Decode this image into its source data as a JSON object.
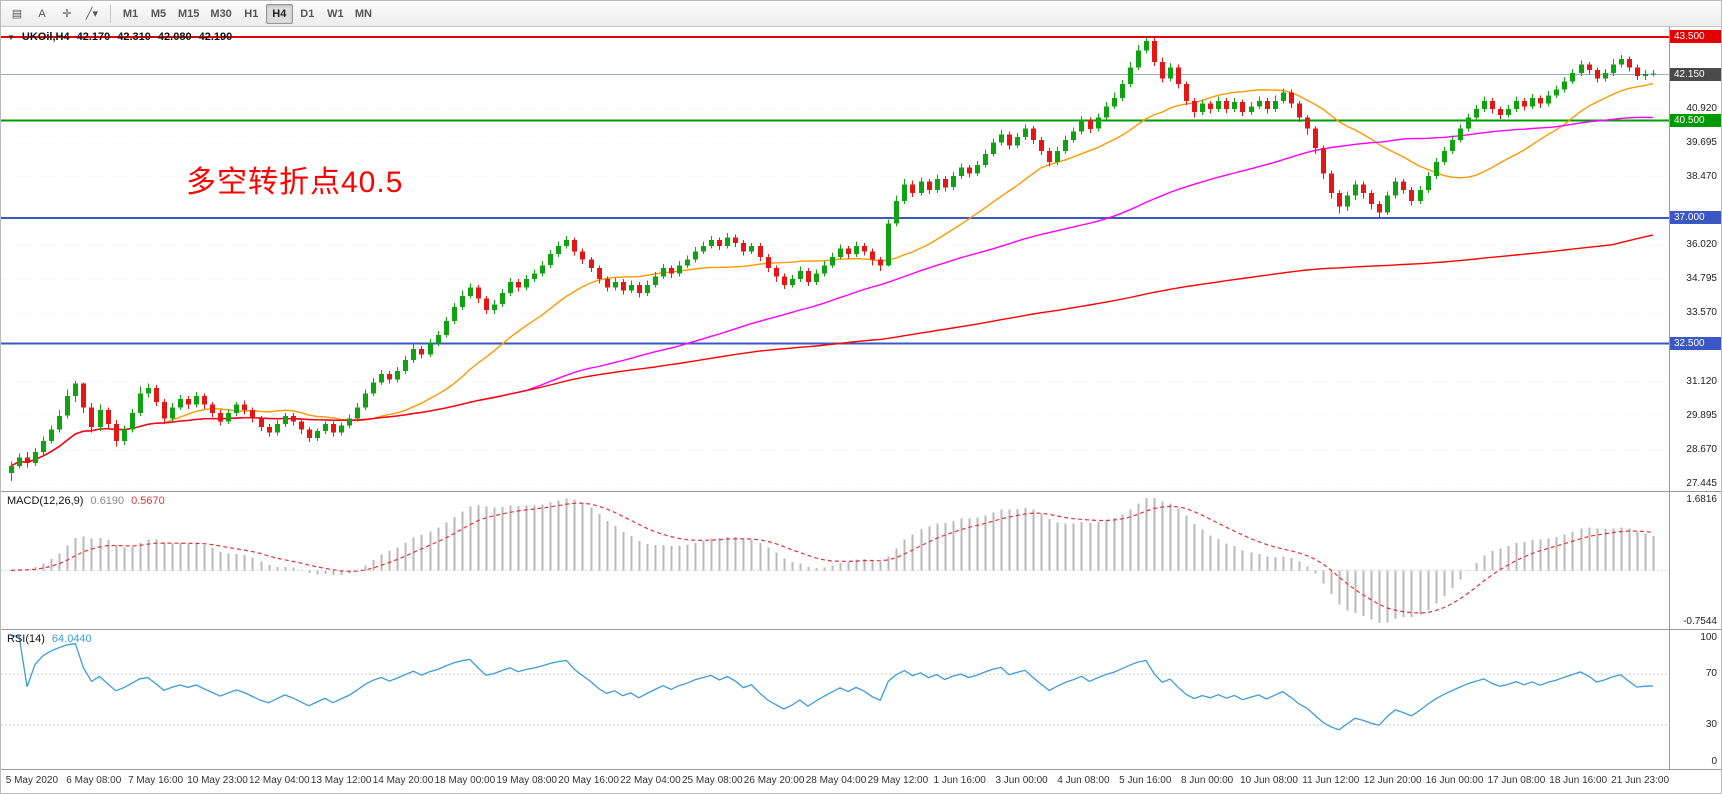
{
  "app": {
    "toolbar": {
      "left_buttons": [
        {
          "name": "chart-window-button",
          "glyph": "▤"
        },
        {
          "name": "text-label-button",
          "glyph": "A"
        },
        {
          "name": "crosshair-button",
          "glyph": "✛"
        },
        {
          "name": "line-studies-dropdown",
          "glyph": "╱",
          "chevron": "▾"
        }
      ],
      "timeframes": [
        "M1",
        "M5",
        "M15",
        "M30",
        "H1",
        "H4",
        "D1",
        "W1",
        "MN"
      ],
      "active_timeframe": "H4"
    }
  },
  "chart": {
    "title": {
      "expander": "▼",
      "symbol_period": "UKOil,H4",
      "open": "42.170",
      "high": "42.310",
      "low": "42.080",
      "close": "42.190"
    },
    "annotation": {
      "text": "多空转折点40.5",
      "color": "#ff0000"
    }
  },
  "chart_data": {
    "type": "candlestick",
    "symbol": "UKOil",
    "timeframe": "H4",
    "price_axis": {
      "min": 27.2,
      "max": 43.85,
      "labels": [
        {
          "v": 40.92,
          "t": "40.920"
        },
        {
          "v": 39.695,
          "t": "39.695"
        },
        {
          "v": 38.47,
          "t": "38.470"
        },
        {
          "v": 36.02,
          "t": "36.020"
        },
        {
          "v": 34.795,
          "t": "34.795"
        },
        {
          "v": 33.57,
          "t": "33.570"
        },
        {
          "v": 31.12,
          "t": "31.120"
        },
        {
          "v": 29.895,
          "t": "29.895"
        },
        {
          "v": 28.67,
          "t": "28.670"
        },
        {
          "v": 27.445,
          "t": "27.445"
        }
      ],
      "badges": [
        {
          "v": 43.5,
          "t": "43.500",
          "bg": "#e40000"
        },
        {
          "v": 42.15,
          "t": "42.150",
          "bg": "#4a4a4a"
        },
        {
          "v": 40.5,
          "t": "40.500",
          "bg": "#009900"
        },
        {
          "v": 37.0,
          "t": "37.000",
          "bg": "#3a57c4"
        },
        {
          "v": 32.5,
          "t": "32.500",
          "bg": "#3a57c4"
        }
      ]
    },
    "hlines": [
      {
        "value": 43.5,
        "color": "#e40000",
        "width": 2
      },
      {
        "value": 40.5,
        "color": "#009900",
        "width": 2
      },
      {
        "value": 37.0,
        "color": "#3a57c4",
        "width": 2
      },
      {
        "value": 32.5,
        "color": "#3a57c4",
        "width": 2
      }
    ],
    "bid_line": {
      "value": 42.15,
      "color": "#9ab0c8"
    },
    "colors": {
      "bull": "#0fa312",
      "bear": "#e41616"
    },
    "moving_averages": [
      {
        "name": "fast-ma",
        "period": 20,
        "color": "#ff9900"
      },
      {
        "name": "medium-ma",
        "period": 65,
        "color": "#ff00ff"
      },
      {
        "name": "slow-ma",
        "period": 200,
        "color": "#ff0000"
      }
    ],
    "candles": [
      [
        27.85,
        28.25,
        27.55,
        28.1
      ],
      [
        28.1,
        28.55,
        28.0,
        28.4
      ],
      [
        28.4,
        28.6,
        28.05,
        28.2
      ],
      [
        28.2,
        28.75,
        28.1,
        28.6
      ],
      [
        28.6,
        29.15,
        28.5,
        29.0
      ],
      [
        29.0,
        29.55,
        28.9,
        29.4
      ],
      [
        29.4,
        30.1,
        29.3,
        29.9
      ],
      [
        29.9,
        30.85,
        29.8,
        30.6
      ],
      [
        30.6,
        31.15,
        30.4,
        31.05
      ],
      [
        31.05,
        31.1,
        30.0,
        30.2
      ],
      [
        30.2,
        30.35,
        29.3,
        29.5
      ],
      [
        29.5,
        30.3,
        29.35,
        30.1
      ],
      [
        30.1,
        30.2,
        29.4,
        29.6
      ],
      [
        29.6,
        29.75,
        28.8,
        29.0
      ],
      [
        29.0,
        29.55,
        28.85,
        29.4
      ],
      [
        29.4,
        30.15,
        29.3,
        30.0
      ],
      [
        30.0,
        30.95,
        29.9,
        30.7
      ],
      [
        30.7,
        31.05,
        30.55,
        30.9
      ],
      [
        30.9,
        31.0,
        30.25,
        30.4
      ],
      [
        30.4,
        30.5,
        29.6,
        29.8
      ],
      [
        29.8,
        30.35,
        29.7,
        30.2
      ],
      [
        30.2,
        30.65,
        30.1,
        30.5
      ],
      [
        30.5,
        30.6,
        30.15,
        30.3
      ],
      [
        30.3,
        30.75,
        30.2,
        30.6
      ],
      [
        30.6,
        30.7,
        30.15,
        30.3
      ],
      [
        30.3,
        30.4,
        29.85,
        30.0
      ],
      [
        30.0,
        30.1,
        29.55,
        29.7
      ],
      [
        29.7,
        30.15,
        29.6,
        30.0
      ],
      [
        30.0,
        30.4,
        29.9,
        30.3
      ],
      [
        30.3,
        30.45,
        29.95,
        30.1
      ],
      [
        30.1,
        30.2,
        29.65,
        29.8
      ],
      [
        29.8,
        29.9,
        29.35,
        29.5
      ],
      [
        29.5,
        29.6,
        29.15,
        29.3
      ],
      [
        29.3,
        29.75,
        29.2,
        29.6
      ],
      [
        29.6,
        30.0,
        29.5,
        29.9
      ],
      [
        29.9,
        30.0,
        29.55,
        29.7
      ],
      [
        29.7,
        29.8,
        29.25,
        29.4
      ],
      [
        29.4,
        29.5,
        28.95,
        29.1
      ],
      [
        29.1,
        29.45,
        29.0,
        29.35
      ],
      [
        29.35,
        29.7,
        29.25,
        29.6
      ],
      [
        29.6,
        29.7,
        29.15,
        29.3
      ],
      [
        29.3,
        29.65,
        29.2,
        29.55
      ],
      [
        29.55,
        29.95,
        29.45,
        29.8
      ],
      [
        29.8,
        30.35,
        29.7,
        30.2
      ],
      [
        30.2,
        30.85,
        30.1,
        30.7
      ],
      [
        30.7,
        31.25,
        30.6,
        31.1
      ],
      [
        31.1,
        31.55,
        31.0,
        31.4
      ],
      [
        31.4,
        31.5,
        31.05,
        31.2
      ],
      [
        31.2,
        31.65,
        31.1,
        31.5
      ],
      [
        31.5,
        32.05,
        31.4,
        31.9
      ],
      [
        31.9,
        32.45,
        31.8,
        32.3
      ],
      [
        32.3,
        32.4,
        31.95,
        32.1
      ],
      [
        32.1,
        32.65,
        32.0,
        32.5
      ],
      [
        32.5,
        32.95,
        32.4,
        32.8
      ],
      [
        32.8,
        33.45,
        32.7,
        33.3
      ],
      [
        33.3,
        33.95,
        33.2,
        33.8
      ],
      [
        33.8,
        34.4,
        33.7,
        34.2
      ],
      [
        34.2,
        34.65,
        34.1,
        34.5
      ],
      [
        34.5,
        34.6,
        33.95,
        34.1
      ],
      [
        34.1,
        34.2,
        33.55,
        33.7
      ],
      [
        33.7,
        34.05,
        33.55,
        33.9
      ],
      [
        33.9,
        34.45,
        33.8,
        34.3
      ],
      [
        34.3,
        34.85,
        34.2,
        34.7
      ],
      [
        34.7,
        34.8,
        34.35,
        34.5
      ],
      [
        34.5,
        34.95,
        34.4,
        34.8
      ],
      [
        34.8,
        35.15,
        34.7,
        35.0
      ],
      [
        35.0,
        35.45,
        34.9,
        35.3
      ],
      [
        35.3,
        35.85,
        35.2,
        35.7
      ],
      [
        35.7,
        36.15,
        35.6,
        36.0
      ],
      [
        36.0,
        36.35,
        35.9,
        36.2
      ],
      [
        36.2,
        36.3,
        35.65,
        35.8
      ],
      [
        35.8,
        35.9,
        35.35,
        35.5
      ],
      [
        35.5,
        35.6,
        35.05,
        35.2
      ],
      [
        35.2,
        35.3,
        34.65,
        34.8
      ],
      [
        34.8,
        34.9,
        34.35,
        34.5
      ],
      [
        34.5,
        34.85,
        34.4,
        34.7
      ],
      [
        34.7,
        34.8,
        34.25,
        34.4
      ],
      [
        34.4,
        34.75,
        34.3,
        34.6
      ],
      [
        34.6,
        34.7,
        34.15,
        34.3
      ],
      [
        34.3,
        34.75,
        34.2,
        34.6
      ],
      [
        34.6,
        35.05,
        34.5,
        34.9
      ],
      [
        34.9,
        35.35,
        34.8,
        35.2
      ],
      [
        35.2,
        35.3,
        34.85,
        35.0
      ],
      [
        35.0,
        35.45,
        34.9,
        35.3
      ],
      [
        35.3,
        35.65,
        35.2,
        35.5
      ],
      [
        35.5,
        35.95,
        35.4,
        35.8
      ],
      [
        35.8,
        36.15,
        35.7,
        36.0
      ],
      [
        36.0,
        36.35,
        35.9,
        36.2
      ],
      [
        36.2,
        36.3,
        35.85,
        36.0
      ],
      [
        36.0,
        36.45,
        35.9,
        36.3
      ],
      [
        36.3,
        36.4,
        35.95,
        36.1
      ],
      [
        36.1,
        36.2,
        35.65,
        35.8
      ],
      [
        35.8,
        36.1,
        35.7,
        36.0
      ],
      [
        36.0,
        36.1,
        35.45,
        35.6
      ],
      [
        35.6,
        35.7,
        35.05,
        35.2
      ],
      [
        35.2,
        35.3,
        34.7,
        34.9
      ],
      [
        34.9,
        35.0,
        34.45,
        34.6
      ],
      [
        34.6,
        34.95,
        34.5,
        34.8
      ],
      [
        34.8,
        35.25,
        34.7,
        35.1
      ],
      [
        35.1,
        35.2,
        34.55,
        34.7
      ],
      [
        34.7,
        35.15,
        34.6,
        35.0
      ],
      [
        35.0,
        35.45,
        34.9,
        35.3
      ],
      [
        35.3,
        35.75,
        35.2,
        35.6
      ],
      [
        35.6,
        36.05,
        35.5,
        35.9
      ],
      [
        35.9,
        36.0,
        35.55,
        35.7
      ],
      [
        35.7,
        36.15,
        35.6,
        36.0
      ],
      [
        36.0,
        36.1,
        35.65,
        35.8
      ],
      [
        35.8,
        35.9,
        35.3,
        35.5
      ],
      [
        35.5,
        35.6,
        35.1,
        35.3
      ],
      [
        35.3,
        36.95,
        35.25,
        36.8
      ],
      [
        36.8,
        37.8,
        36.7,
        37.6
      ],
      [
        37.6,
        38.4,
        37.5,
        38.2
      ],
      [
        38.2,
        38.35,
        37.75,
        37.9
      ],
      [
        37.9,
        38.45,
        37.8,
        38.3
      ],
      [
        38.3,
        38.4,
        37.85,
        38.0
      ],
      [
        38.0,
        38.55,
        37.9,
        38.4
      ],
      [
        38.4,
        38.5,
        37.95,
        38.1
      ],
      [
        38.1,
        38.65,
        38.0,
        38.5
      ],
      [
        38.5,
        38.95,
        38.4,
        38.8
      ],
      [
        38.8,
        38.9,
        38.45,
        38.6
      ],
      [
        38.6,
        39.05,
        38.5,
        38.9
      ],
      [
        38.9,
        39.45,
        38.8,
        39.3
      ],
      [
        39.3,
        39.85,
        39.2,
        39.7
      ],
      [
        39.7,
        40.15,
        39.6,
        40.0
      ],
      [
        40.0,
        40.1,
        39.45,
        39.6
      ],
      [
        39.6,
        40.05,
        39.5,
        39.9
      ],
      [
        39.9,
        40.35,
        39.8,
        40.2
      ],
      [
        40.2,
        40.3,
        39.65,
        39.8
      ],
      [
        39.8,
        39.9,
        39.25,
        39.4
      ],
      [
        39.4,
        39.5,
        38.85,
        39.0
      ],
      [
        39.0,
        39.55,
        38.9,
        39.4
      ],
      [
        39.4,
        39.95,
        39.3,
        39.8
      ],
      [
        39.8,
        40.25,
        39.7,
        40.1
      ],
      [
        40.1,
        40.65,
        40.0,
        40.5
      ],
      [
        40.5,
        40.6,
        40.05,
        40.2
      ],
      [
        40.2,
        40.75,
        40.1,
        40.6
      ],
      [
        40.6,
        41.15,
        40.5,
        41.0
      ],
      [
        41.0,
        41.5,
        40.9,
        41.3
      ],
      [
        41.3,
        41.95,
        41.2,
        41.8
      ],
      [
        41.8,
        42.6,
        41.7,
        42.4
      ],
      [
        42.4,
        43.2,
        42.3,
        43.0
      ],
      [
        43.0,
        43.48,
        42.9,
        43.35
      ],
      [
        43.35,
        43.45,
        42.45,
        42.6
      ],
      [
        42.6,
        42.75,
        41.85,
        42.0
      ],
      [
        42.0,
        42.55,
        41.9,
        42.4
      ],
      [
        42.4,
        42.5,
        41.65,
        41.8
      ],
      [
        41.8,
        41.9,
        41.05,
        41.2
      ],
      [
        41.2,
        41.3,
        40.6,
        40.8
      ],
      [
        40.8,
        41.25,
        40.7,
        41.1
      ],
      [
        41.1,
        41.2,
        40.75,
        40.9
      ],
      [
        40.9,
        41.35,
        40.8,
        41.2
      ],
      [
        41.2,
        41.3,
        40.75,
        40.9
      ],
      [
        40.9,
        41.3,
        40.8,
        41.15
      ],
      [
        41.15,
        41.25,
        40.65,
        40.8
      ],
      [
        40.8,
        41.15,
        40.7,
        41.0
      ],
      [
        41.0,
        41.35,
        40.9,
        41.2
      ],
      [
        41.2,
        41.3,
        40.75,
        40.9
      ],
      [
        40.9,
        41.4,
        40.8,
        41.2
      ],
      [
        41.2,
        41.65,
        41.1,
        41.5
      ],
      [
        41.5,
        41.6,
        40.95,
        41.1
      ],
      [
        41.1,
        41.2,
        40.45,
        40.6
      ],
      [
        40.6,
        40.7,
        40.0,
        40.2
      ],
      [
        40.2,
        40.3,
        39.3,
        39.5
      ],
      [
        39.5,
        39.6,
        38.4,
        38.6
      ],
      [
        38.6,
        38.7,
        37.7,
        37.9
      ],
      [
        37.9,
        38.0,
        37.15,
        37.4
      ],
      [
        37.4,
        37.95,
        37.25,
        37.8
      ],
      [
        37.8,
        38.35,
        37.65,
        38.2
      ],
      [
        38.2,
        38.3,
        37.7,
        37.9
      ],
      [
        37.9,
        38.0,
        37.3,
        37.5
      ],
      [
        37.5,
        37.6,
        37.0,
        37.2
      ],
      [
        37.2,
        37.95,
        37.1,
        37.8
      ],
      [
        37.8,
        38.45,
        37.7,
        38.3
      ],
      [
        38.3,
        38.4,
        37.85,
        38.0
      ],
      [
        38.0,
        38.1,
        37.45,
        37.6
      ],
      [
        37.6,
        38.15,
        37.5,
        38.0
      ],
      [
        38.0,
        38.65,
        37.9,
        38.5
      ],
      [
        38.5,
        39.15,
        38.4,
        39.0
      ],
      [
        39.0,
        39.55,
        38.9,
        39.4
      ],
      [
        39.4,
        39.95,
        39.3,
        39.8
      ],
      [
        39.8,
        40.35,
        39.7,
        40.2
      ],
      [
        40.2,
        40.75,
        40.1,
        40.6
      ],
      [
        40.6,
        41.05,
        40.5,
        40.9
      ],
      [
        40.9,
        41.35,
        40.8,
        41.2
      ],
      [
        41.2,
        41.3,
        40.75,
        40.9
      ],
      [
        40.9,
        41.0,
        40.55,
        40.7
      ],
      [
        40.7,
        41.05,
        40.6,
        40.9
      ],
      [
        40.9,
        41.35,
        40.8,
        41.2
      ],
      [
        41.2,
        41.3,
        40.85,
        41.0
      ],
      [
        41.0,
        41.45,
        40.9,
        41.3
      ],
      [
        41.3,
        41.4,
        40.95,
        41.1
      ],
      [
        41.1,
        41.55,
        41.0,
        41.4
      ],
      [
        41.4,
        41.75,
        41.3,
        41.6
      ],
      [
        41.6,
        42.05,
        41.5,
        41.9
      ],
      [
        41.9,
        42.35,
        41.8,
        42.2
      ],
      [
        42.2,
        42.65,
        42.1,
        42.5
      ],
      [
        42.5,
        42.6,
        42.15,
        42.3
      ],
      [
        42.3,
        42.4,
        41.85,
        42.0
      ],
      [
        42.0,
        42.35,
        41.9,
        42.2
      ],
      [
        42.2,
        42.7,
        42.1,
        42.5
      ],
      [
        42.5,
        42.85,
        42.4,
        42.7
      ],
      [
        42.7,
        42.8,
        42.25,
        42.4
      ],
      [
        42.4,
        42.5,
        41.95,
        42.1
      ],
      [
        42.1,
        42.3,
        41.95,
        42.17
      ],
      [
        42.17,
        42.31,
        42.08,
        42.19
      ]
    ],
    "time_labels": [
      "5 May 2020",
      "6 May 08:00",
      "7 May 16:00",
      "10 May 23:00",
      "12 May 04:00",
      "13 May 12:00",
      "14 May 20:00",
      "18 May 00:00",
      "19 May 08:00",
      "20 May 16:00",
      "22 May 04:00",
      "25 May 08:00",
      "26 May 20:00",
      "28 May 04:00",
      "29 May 12:00",
      "1 Jun 16:00",
      "3 Jun 00:00",
      "4 Jun 08:00",
      "5 Jun 16:00",
      "8 Jun 00:00",
      "10 Jun 08:00",
      "11 Jun 12:00",
      "12 Jun 20:00",
      "16 Jun 00:00",
      "17 Jun 08:00",
      "18 Jun 16:00",
      "21 Jun 23:00"
    ]
  },
  "macd": {
    "label": "MACD(12,26,9)",
    "value_main": "0.6190",
    "value_signal": "0.5670",
    "params": {
      "fast": 12,
      "slow": 26,
      "signal": 9
    },
    "axis": {
      "max_label": "1.6816",
      "min_label": "-0.7544"
    },
    "colors": {
      "histogram": "#b9b9b9",
      "signal": "#e63333"
    }
  },
  "rsi": {
    "label": "RSI(14)",
    "value": "64.0440",
    "period": 14,
    "color": "#3e9bdd",
    "levels": [
      {
        "v": 100,
        "t": "100"
      },
      {
        "v": 70,
        "t": "70"
      },
      {
        "v": 30,
        "t": "30"
      },
      {
        "v": 0,
        "t": "0"
      }
    ]
  }
}
